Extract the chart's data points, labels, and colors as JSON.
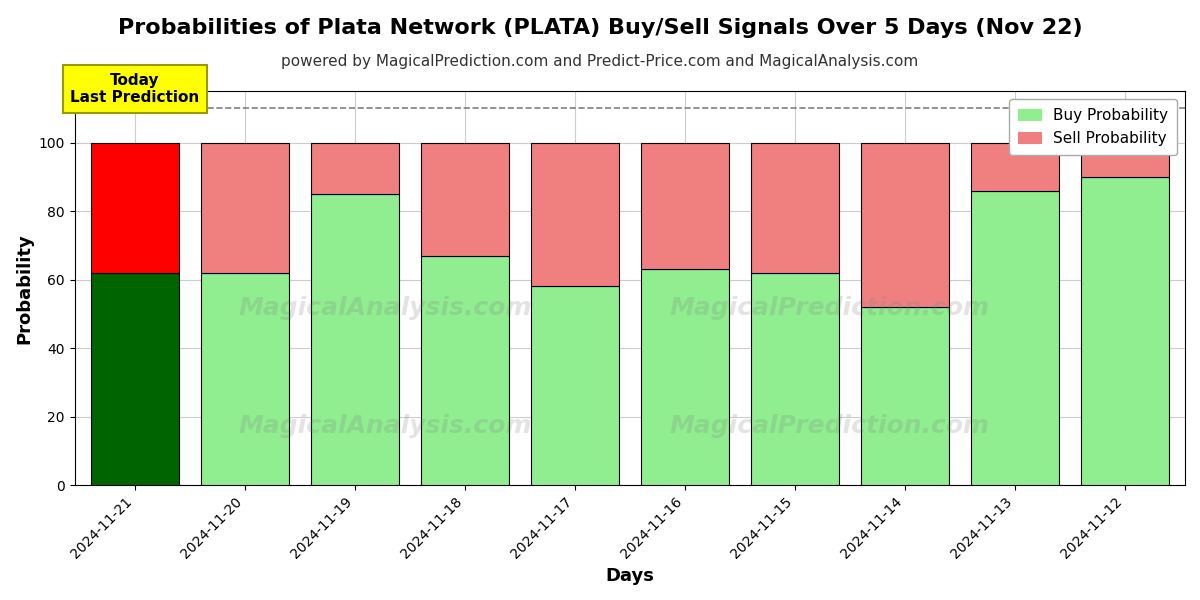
{
  "title": "Probabilities of Plata Network (PLATA) Buy/Sell Signals Over 5 Days (Nov 22)",
  "subtitle": "powered by MagicalPrediction.com and Predict-Price.com and MagicalAnalysis.com",
  "xlabel": "Days",
  "ylabel": "Probability",
  "categories": [
    "2024-11-21",
    "2024-11-20",
    "2024-11-19",
    "2024-11-18",
    "2024-11-17",
    "2024-11-16",
    "2024-11-15",
    "2024-11-14",
    "2024-11-13",
    "2024-11-12"
  ],
  "buy_values": [
    62,
    62,
    85,
    67,
    58,
    63,
    62,
    52,
    86,
    90
  ],
  "sell_values": [
    38,
    38,
    15,
    33,
    42,
    37,
    38,
    48,
    14,
    10
  ],
  "buy_color_today": "#006400",
  "sell_color_today": "#FF0000",
  "buy_color_normal": "#90EE90",
  "sell_color_normal": "#F08080",
  "bar_edge_color": "#000000",
  "ylim": [
    0,
    115
  ],
  "yticks": [
    0,
    20,
    40,
    60,
    80,
    100
  ],
  "dashed_line_y": 110,
  "today_label": "Today\nLast Prediction",
  "legend_buy": "Buy Probability",
  "legend_sell": "Sell Probability",
  "background_color": "#ffffff",
  "grid_color": "#cccccc",
  "title_fontsize": 16,
  "subtitle_fontsize": 11,
  "label_fontsize": 13,
  "tick_fontsize": 10,
  "legend_fontsize": 11
}
